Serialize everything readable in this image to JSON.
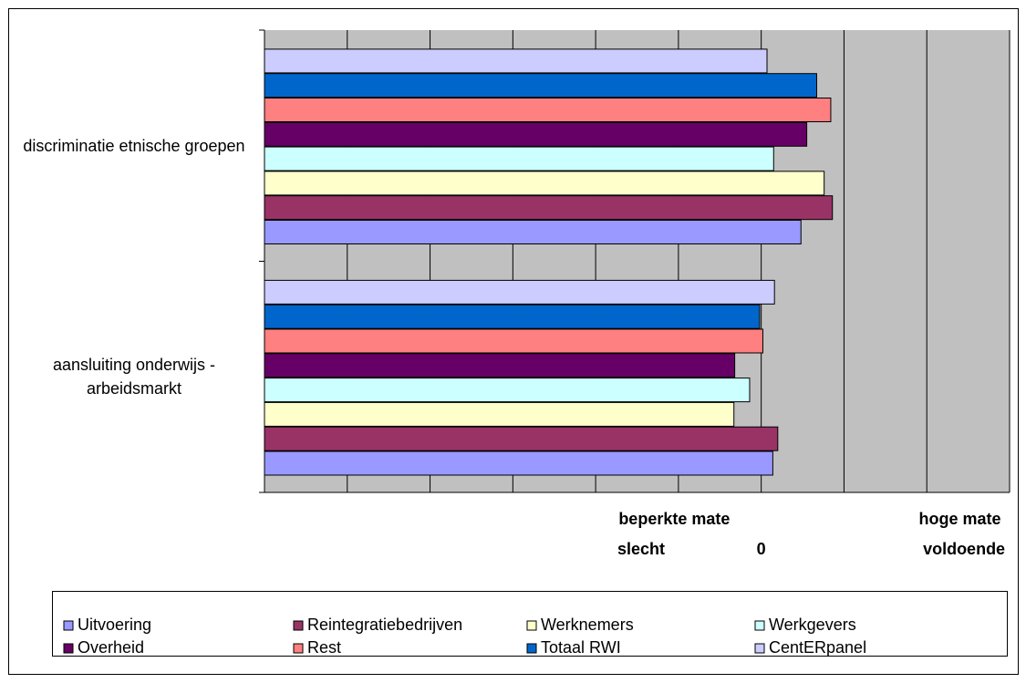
{
  "chart_data": {
    "type": "hbar",
    "categories": [
      "discriminatie etnische groepen",
      "aansluiting onderwijs - arbeidsmarkt"
    ],
    "series": [
      {
        "name": "Uitvoering",
        "color": "#9999ff",
        "values": [
          0.48,
          0.14
        ]
      },
      {
        "name": "Reintegratiebedrijven",
        "color": "#993366",
        "values": [
          0.86,
          0.2
        ]
      },
      {
        "name": "Werknemers",
        "color": "#ffffcc",
        "values": [
          0.76,
          -0.33
        ]
      },
      {
        "name": "Werkgevers",
        "color": "#ccffff",
        "values": [
          0.15,
          -0.14
        ]
      },
      {
        "name": "Overheid",
        "color": "#660066",
        "values": [
          0.55,
          -0.32
        ]
      },
      {
        "name": "Rest",
        "color": "#ff8080",
        "values": [
          0.84,
          0.02
        ]
      },
      {
        "name": "Totaal RWI",
        "color": "#0066cc",
        "values": [
          0.67,
          -0.02
        ]
      },
      {
        "name": "CentERpanel",
        "color": "#ccccff",
        "values": [
          0.07,
          0.16
        ]
      }
    ],
    "xlim": [
      -6,
      3
    ],
    "xticks": [
      -6,
      -5,
      -4,
      -3,
      -2,
      -1,
      0,
      1,
      2,
      3
    ],
    "grid": true,
    "x_label_rows": [
      [
        {
          "x": -1.05,
          "text": "beperkte mate"
        },
        {
          "x": 2.4,
          "text": "hoge mate"
        }
      ],
      [
        {
          "x": -1.45,
          "text": "slecht"
        },
        {
          "x": 0,
          "text": "0"
        },
        {
          "x": 2.45,
          "text": "voldoende"
        }
      ]
    ]
  }
}
